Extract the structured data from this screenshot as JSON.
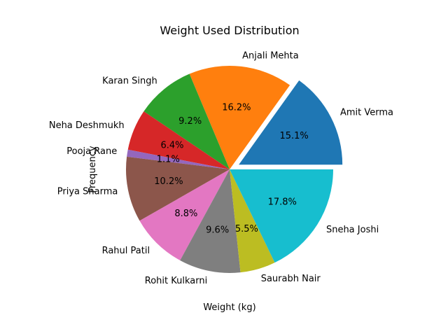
{
  "chart_data": {
    "type": "pie",
    "title": "Weight Used Distribution",
    "xlabel": "Weight (kg)",
    "ylabel": "Frequency",
    "start_angle_deg": 0,
    "direction": "counterclockwise",
    "slices": [
      {
        "label": "Amit Verma",
        "percent": 15.1,
        "color": "#1f77b4",
        "exploded": true
      },
      {
        "label": "Anjali Mehta",
        "percent": 16.2,
        "color": "#ff7f0e",
        "exploded": false
      },
      {
        "label": "Karan Singh",
        "percent": 9.2,
        "color": "#2ca02c",
        "exploded": false
      },
      {
        "label": "Neha Deshmukh",
        "percent": 6.4,
        "color": "#d62728",
        "exploded": false
      },
      {
        "label": "Pooja Rane",
        "percent": 1.1,
        "color": "#9467bd",
        "exploded": false
      },
      {
        "label": "Priya Sharma",
        "percent": 10.2,
        "color": "#8c564b",
        "exploded": false
      },
      {
        "label": "Rahul Patil",
        "percent": 8.8,
        "color": "#e377c2",
        "exploded": false
      },
      {
        "label": "Rohit Kulkarni",
        "percent": 9.6,
        "color": "#7f7f7f",
        "exploded": false
      },
      {
        "label": "Saurabh Nair",
        "percent": 5.5,
        "color": "#bcbd22",
        "exploded": false
      },
      {
        "label": "Sneha Joshi",
        "percent": 17.8,
        "color": "#17becf",
        "exploded": false
      }
    ]
  }
}
